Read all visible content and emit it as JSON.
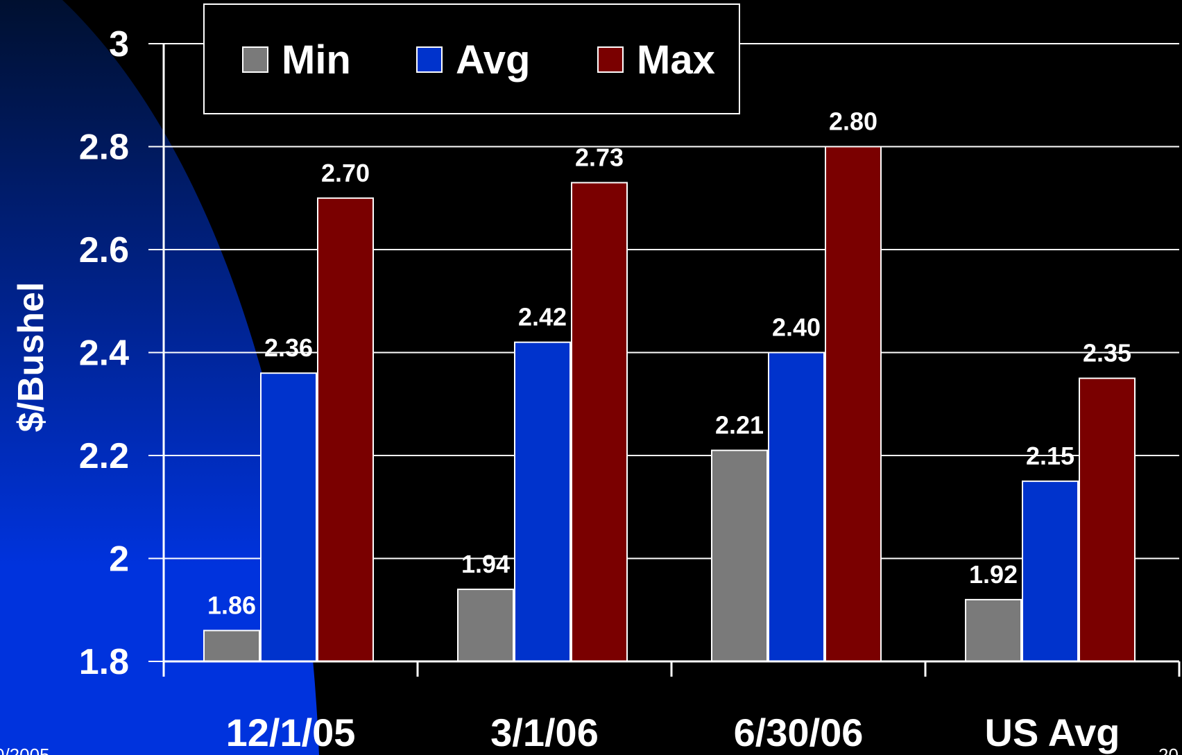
{
  "chart_data": {
    "type": "bar",
    "categories": [
      "12/1/05",
      "3/1/06",
      "6/30/06",
      "US Avg"
    ],
    "series": [
      {
        "name": "Min",
        "values": [
          1.86,
          1.94,
          2.21,
          1.92
        ],
        "labels": [
          "1.86",
          "1.94",
          "2.21",
          "1.92"
        ],
        "color": "#7a7a7a"
      },
      {
        "name": "Avg",
        "values": [
          2.36,
          2.42,
          2.4,
          2.15
        ],
        "labels": [
          "2.36",
          "2.42",
          "2.40",
          "2.15"
        ],
        "color": "#0033cc"
      },
      {
        "name": "Max",
        "values": [
          2.7,
          2.73,
          2.8,
          2.35
        ],
        "labels": [
          "2.70",
          "2.73",
          "2.80",
          "2.35"
        ],
        "color": "#7a0000"
      }
    ],
    "ylabel": "$/Bushel",
    "ylim": [
      1.8,
      3.0
    ],
    "yticks": [
      "1.8",
      "2",
      "2.2",
      "2.4",
      "2.6",
      "2.8",
      "3"
    ],
    "grid": true,
    "legend_position": "top"
  },
  "colors": {
    "background": "#000000",
    "accent_gradient_start": "#0033dd",
    "accent_gradient_end": "#001030",
    "axis": "#ffffff"
  },
  "footer": {
    "left_fragment": "0/2005",
    "right_fragment": "20"
  }
}
